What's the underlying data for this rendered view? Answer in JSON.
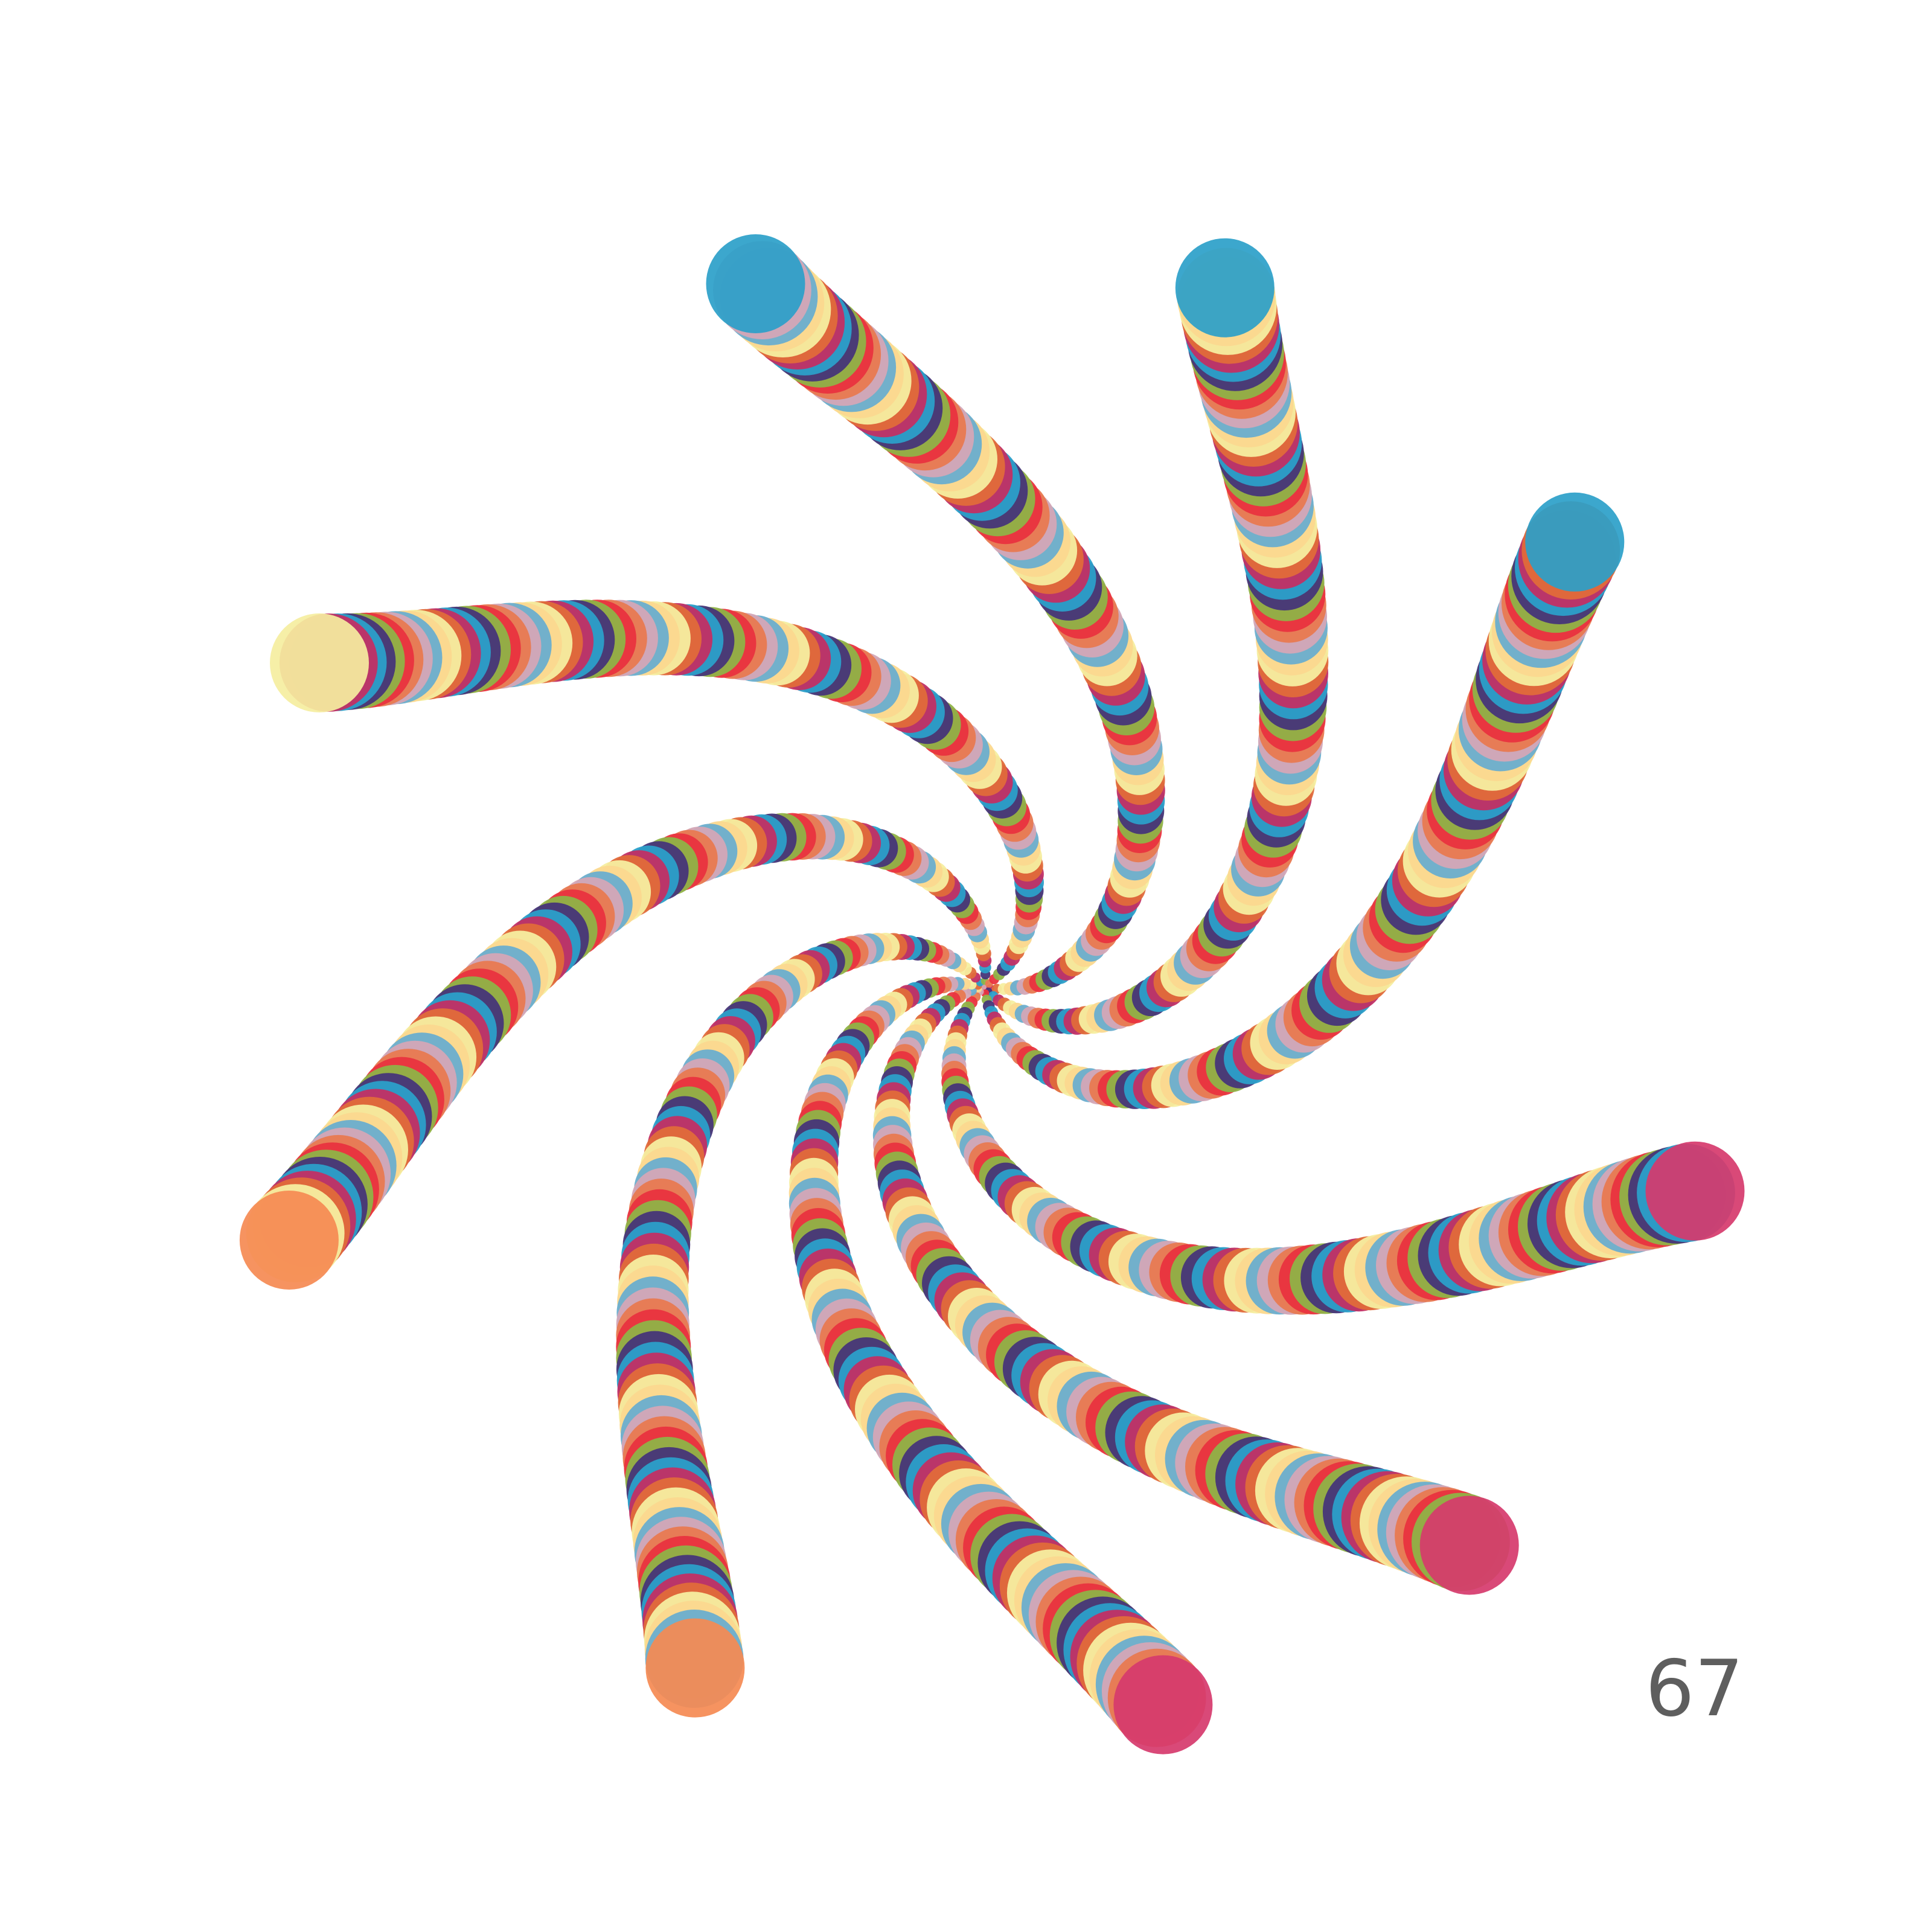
{
  "page_number": "67",
  "artwork": {
    "arm_count": 9,
    "palette": [
      "#2b9fc9",
      "#fbd88f",
      "#e9333f",
      "#c22f64",
      "#6aaecf",
      "#8fb347",
      "#e06b3a",
      "#d4a6b6",
      "#463579",
      "#f5eea0",
      "#e87950"
    ],
    "arm_tips": [
      {
        "name": "spiral-arm-1",
        "tip_color": "#2b9fc9"
      },
      {
        "name": "spiral-arm-2",
        "tip_color": "#2b9fc9"
      },
      {
        "name": "spiral-arm-3",
        "tip_color": "#2b9fc9"
      },
      {
        "name": "spiral-arm-4",
        "tip_color": "#d63a6c"
      },
      {
        "name": "spiral-arm-5",
        "tip_color": "#d63a6c"
      },
      {
        "name": "spiral-arm-6",
        "tip_color": "#d63a6c"
      },
      {
        "name": "spiral-arm-7",
        "tip_color": "#f58a52"
      },
      {
        "name": "spiral-arm-8",
        "tip_color": "#f58a52"
      },
      {
        "name": "spiral-arm-9",
        "tip_color": "#f5eea0"
      }
    ]
  }
}
